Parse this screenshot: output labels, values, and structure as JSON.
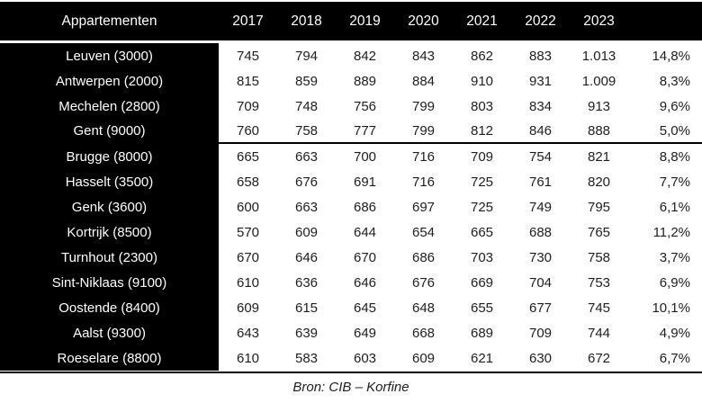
{
  "chart_data": {
    "type": "table",
    "title": "Appartementen",
    "columns": [
      "2017",
      "2018",
      "2019",
      "2020",
      "2021",
      "2022",
      "2023"
    ],
    "change_column_header": "",
    "rows": [
      {
        "label": "Leuven (3000)",
        "values": [
          "745",
          "794",
          "842",
          "843",
          "862",
          "883",
          "1.013"
        ],
        "change": "14,8%"
      },
      {
        "label": "Antwerpen (2000)",
        "values": [
          "815",
          "859",
          "889",
          "884",
          "910",
          "931",
          "1.009"
        ],
        "change": "8,3%"
      },
      {
        "label": "Mechelen (2800)",
        "values": [
          "709",
          "748",
          "756",
          "799",
          "803",
          "834",
          "913"
        ],
        "change": "9,6%"
      },
      {
        "label": "Gent (9000)",
        "values": [
          "760",
          "758",
          "777",
          "799",
          "812",
          "846",
          "888"
        ],
        "change": "5,0%"
      },
      {
        "label": "Brugge (8000)",
        "values": [
          "665",
          "663",
          "700",
          "716",
          "709",
          "754",
          "821"
        ],
        "change": "8,8%"
      },
      {
        "label": "Hasselt (3500)",
        "values": [
          "658",
          "676",
          "691",
          "716",
          "725",
          "761",
          "820"
        ],
        "change": "7,7%"
      },
      {
        "label": "Genk (3600)",
        "values": [
          "600",
          "663",
          "686",
          "697",
          "725",
          "749",
          "795"
        ],
        "change": "6,1%"
      },
      {
        "label": "Kortrijk (8500)",
        "values": [
          "570",
          "609",
          "644",
          "654",
          "665",
          "688",
          "765"
        ],
        "change": "11,2%"
      },
      {
        "label": "Turnhout (2300)",
        "values": [
          "670",
          "646",
          "670",
          "686",
          "703",
          "730",
          "758"
        ],
        "change": "3,7%"
      },
      {
        "label": "Sint-Niklaas (9100)",
        "values": [
          "610",
          "636",
          "646",
          "676",
          "669",
          "704",
          "753"
        ],
        "change": "6,9%"
      },
      {
        "label": "Oostende (8400)",
        "values": [
          "609",
          "615",
          "645",
          "648",
          "655",
          "677",
          "745"
        ],
        "change": "10,1%"
      },
      {
        "label": "Aalst (9300)",
        "values": [
          "643",
          "639",
          "649",
          "668",
          "689",
          "709",
          "744"
        ],
        "change": "4,9%"
      },
      {
        "label": "Roeselare (8800)",
        "values": [
          "610",
          "583",
          "603",
          "609",
          "621",
          "630",
          "672"
        ],
        "change": "6,7%"
      }
    ],
    "group_separator_after_row": 4,
    "source": "Bron: CIB – Korfine",
    "layout_hints": "header row and first column black with white text; separator rule after row 4; full-width rule above source line"
  },
  "colors": {
    "header_bg": "#000000",
    "header_text": "#ffffff",
    "body_text": "#1f1f1f",
    "rule": "#000000"
  }
}
